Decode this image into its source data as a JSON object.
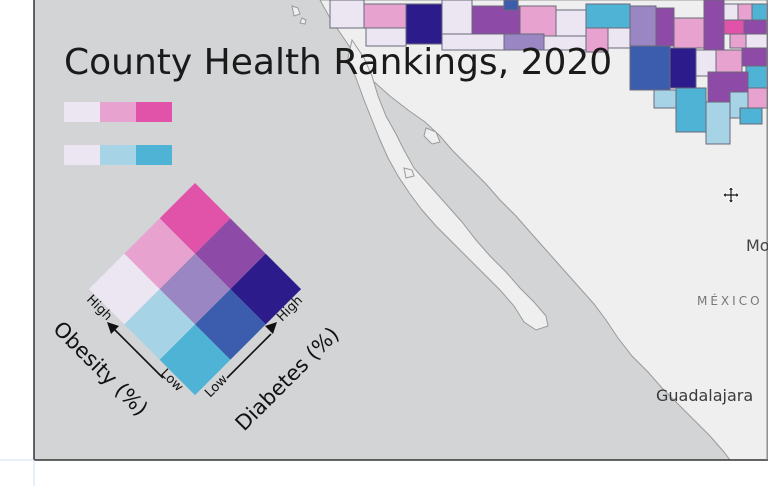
{
  "map": {
    "title": "County Health Rankings, 2020",
    "place_labels": {
      "mexico": "MÉXICO",
      "mo": "Mo",
      "guadalajara": "Guadalajara"
    },
    "colors": {
      "ocean": "#d2d4d5",
      "land": "#efefef",
      "border": "#9a9a9a"
    }
  },
  "legend": {
    "obesity_ramp": [
      "#ebe6f2",
      "#e8a2cf",
      "#e153a9"
    ],
    "diabetes_ramp": [
      "#ebe6f2",
      "#a6d3e6",
      "#4fb3d6"
    ],
    "grid_colors": [
      [
        "#e153a9",
        "#8d4aa6",
        "#2c1b8b"
      ],
      [
        "#e8a2cf",
        "#9a86c2",
        "#3c5dae"
      ],
      [
        "#ebe6f2",
        "#a6d3e6",
        "#4fb3d6"
      ]
    ],
    "obesity_axis": {
      "label": "Obesity (%)",
      "high": "High",
      "low": "Low"
    },
    "diabetes_axis": {
      "label": "Diabetes (%)",
      "high": "High",
      "low": "Low"
    }
  },
  "cursor": {
    "icon": "move-icon"
  }
}
